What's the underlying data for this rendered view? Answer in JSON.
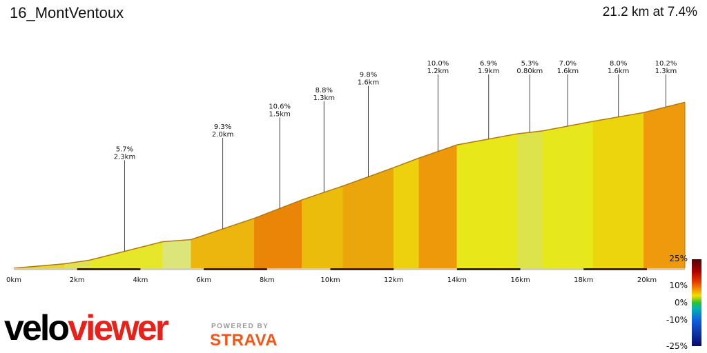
{
  "header": {
    "title": "16_MontVentoux",
    "summary": "21.2 km at 7.4%"
  },
  "branding": {
    "logo_velo": "velo",
    "logo_viewer": "viewer",
    "powered_by": "POWERED BY",
    "strava": "STRAVA"
  },
  "colors": {
    "logo_red": "#e8221a",
    "strava_orange": "#f2561b",
    "baseline_bar": "#3a2410"
  },
  "chart_data": {
    "type": "area",
    "x_unit": "km",
    "xlim": [
      0,
      21.2
    ],
    "x_ticks": [
      {
        "value": 0,
        "label": "0km"
      },
      {
        "value": 2,
        "label": "2km"
      },
      {
        "value": 4,
        "label": "4km"
      },
      {
        "value": 6,
        "label": "6km"
      },
      {
        "value": 8,
        "label": "8km"
      },
      {
        "value": 10,
        "label": "10km"
      },
      {
        "value": 12,
        "label": "12km"
      },
      {
        "value": 14,
        "label": "14km"
      },
      {
        "value": 16,
        "label": "16km"
      },
      {
        "value": 18,
        "label": "18km"
      },
      {
        "value": 20,
        "label": "20km"
      }
    ],
    "profile": [
      [
        0.0,
        0
      ],
      [
        1.6,
        0.06
      ],
      [
        2.4,
        0.11
      ],
      [
        4.7,
        0.36
      ],
      [
        5.6,
        0.39
      ],
      [
        7.6,
        0.68
      ],
      [
        9.1,
        0.93
      ],
      [
        10.4,
        1.12
      ],
      [
        12.0,
        1.37
      ],
      [
        12.8,
        1.5
      ],
      [
        14.0,
        1.68
      ],
      [
        15.9,
        1.83
      ],
      [
        16.7,
        1.87
      ],
      [
        18.3,
        2.0
      ],
      [
        19.9,
        2.12
      ],
      [
        21.2,
        2.26
      ]
    ],
    "segments": [
      {
        "start": 0.0,
        "end": 1.6,
        "color": "#e6d43a"
      },
      {
        "start": 1.6,
        "end": 2.4,
        "color": "#dfe055"
      },
      {
        "start": 2.4,
        "end": 4.7,
        "color": "#e6e62a"
      },
      {
        "start": 4.7,
        "end": 5.6,
        "color": "#dce57a"
      },
      {
        "start": 5.6,
        "end": 7.6,
        "color": "#ecb60e"
      },
      {
        "start": 7.6,
        "end": 9.1,
        "color": "#eb8508"
      },
      {
        "start": 9.1,
        "end": 10.4,
        "color": "#ecbc0c"
      },
      {
        "start": 10.4,
        "end": 12.0,
        "color": "#eba60c"
      },
      {
        "start": 12.0,
        "end": 12.8,
        "color": "#eed10e"
      },
      {
        "start": 12.8,
        "end": 14.0,
        "color": "#ee990a"
      },
      {
        "start": 14.0,
        "end": 15.9,
        "color": "#e8e71a"
      },
      {
        "start": 15.9,
        "end": 16.7,
        "color": "#dde34a"
      },
      {
        "start": 16.7,
        "end": 18.3,
        "color": "#e6e71c"
      },
      {
        "start": 18.3,
        "end": 19.9,
        "color": "#ecd50c"
      },
      {
        "start": 19.9,
        "end": 21.2,
        "color": "#ee9a0c"
      }
    ],
    "annotations": [
      {
        "x": 3.5,
        "grade": "5.7%",
        "length": "2.3km"
      },
      {
        "x": 6.6,
        "grade": "9.3%",
        "length": "2.0km"
      },
      {
        "x": 8.4,
        "grade": "10.6%",
        "length": "1.5km"
      },
      {
        "x": 9.8,
        "grade": "8.8%",
        "length": "1.3km"
      },
      {
        "x": 11.2,
        "grade": "9.8%",
        "length": "1.6km"
      },
      {
        "x": 13.4,
        "grade": "10.0%",
        "length": "1.2km"
      },
      {
        "x": 15.0,
        "grade": "6.9%",
        "length": "1.9km"
      },
      {
        "x": 16.3,
        "grade": "5.3%",
        "length": "0.80km"
      },
      {
        "x": 17.5,
        "grade": "7.0%",
        "length": "1.6km"
      },
      {
        "x": 19.1,
        "grade": "8.0%",
        "length": "1.6km"
      },
      {
        "x": 20.6,
        "grade": "10.2%",
        "length": "1.3km"
      }
    ],
    "km_bars": [
      [
        2,
        4
      ],
      [
        6,
        8
      ],
      [
        10,
        12
      ],
      [
        14,
        16
      ],
      [
        18,
        20
      ]
    ],
    "legend": {
      "ticks": [
        {
          "value": 25,
          "label": "25%"
        },
        {
          "value": 10,
          "label": "10%"
        },
        {
          "value": 0,
          "label": "0%"
        },
        {
          "value": -10,
          "label": "-10%"
        },
        {
          "value": -25,
          "label": "-25%"
        }
      ],
      "stops": [
        {
          "value": 25,
          "color": "#4a0a0a"
        },
        {
          "value": 18,
          "color": "#b00000"
        },
        {
          "value": 12,
          "color": "#e83a00"
        },
        {
          "value": 8,
          "color": "#f08c00"
        },
        {
          "value": 4,
          "color": "#f0e000"
        },
        {
          "value": 0,
          "color": "#30c030"
        },
        {
          "value": -3,
          "color": "#00b8b0"
        },
        {
          "value": -10,
          "color": "#1060e0"
        },
        {
          "value": -25,
          "color": "#0a0a6a"
        }
      ]
    }
  }
}
